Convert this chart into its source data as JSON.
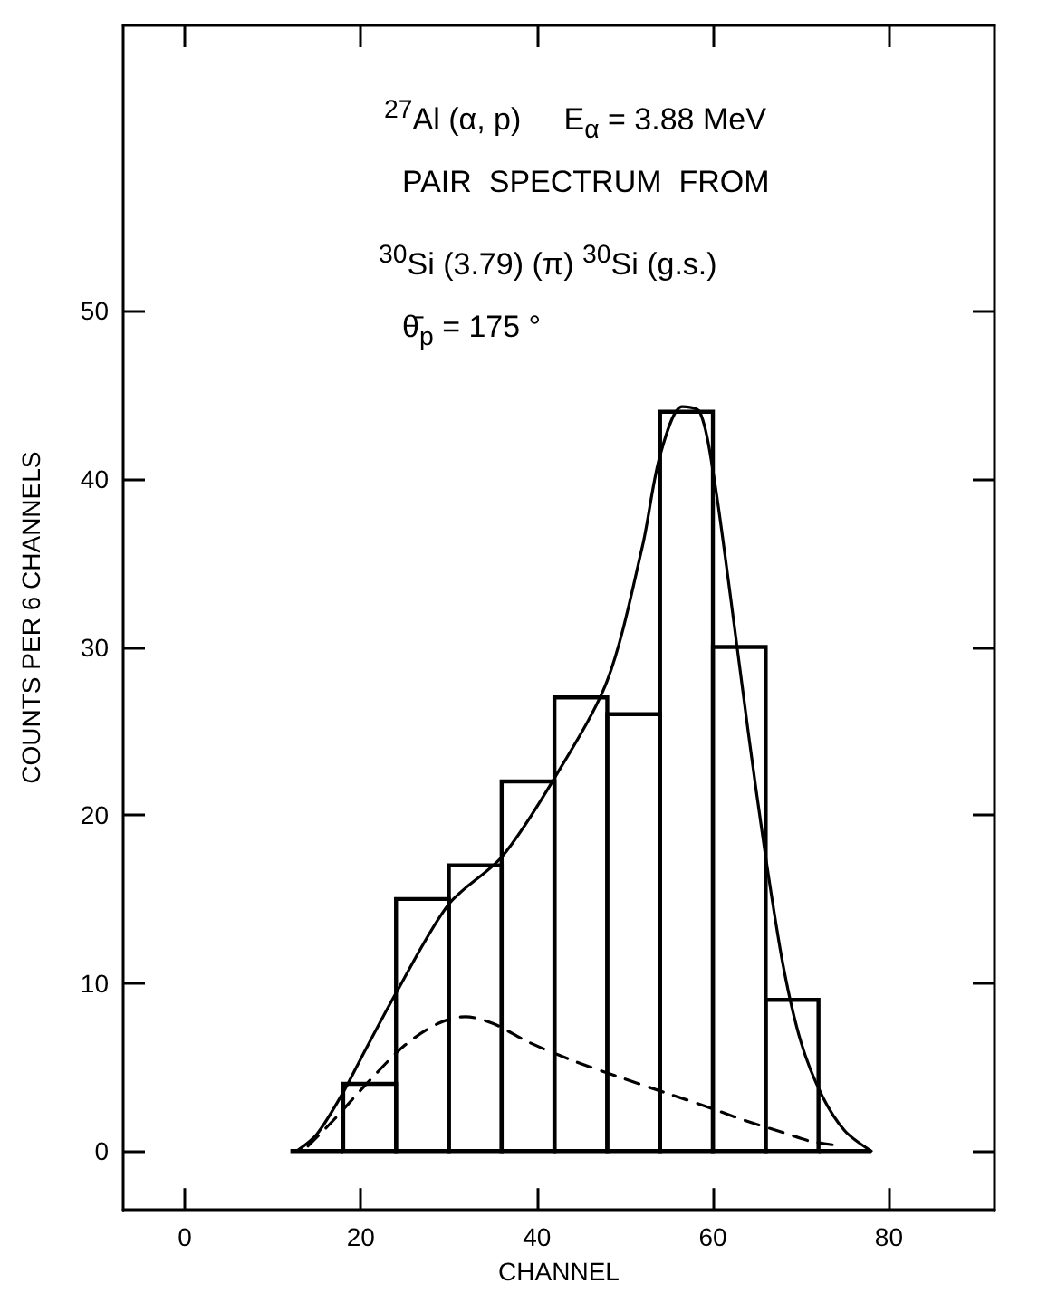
{
  "chart_data": {
    "type": "histogram",
    "xlabel": "CHANNEL",
    "ylabel": "COUNTS PER 6 CHANNELS",
    "annotations": [
      "$^{27}$Al (α, p)     E$_{α}$ = 3.88 MeV",
      "PAIR  SPECTRUM  FROM",
      "$^{30}$Si (3.79) (π) $^{30}$Si (g.s.)",
      "θ̄$_{p}$ = 175 °"
    ],
    "series": [
      {
        "color": "#000000",
        "bins": [
          12,
          18,
          24,
          30,
          36,
          42,
          48,
          54,
          60,
          66,
          72,
          78
        ],
        "values": [
          0,
          4,
          15,
          17,
          22,
          27,
          26,
          44,
          30,
          9,
          0
        ]
      },
      {
        "type": "line",
        "color": "#000000",
        "line_style": "solid",
        "x": [
          12.7,
          15,
          18,
          20,
          24,
          30,
          36,
          42,
          48,
          52,
          54,
          56.5,
          58.5,
          60,
          62,
          64,
          66,
          68,
          70,
          72.4,
          75,
          78
        ],
        "values": [
          0,
          1,
          3.5,
          5.5,
          9.4,
          14.7,
          17.5,
          22.2,
          28,
          36,
          41.4,
          44.3,
          44,
          40.5,
          33,
          25,
          17.5,
          11,
          6.5,
          3.3,
          1.2,
          0
        ]
      },
      {
        "type": "line",
        "color": "#000000",
        "line_style": "dashed",
        "x": [
          14,
          17,
          21,
          25,
          28.8,
          31.9,
          35,
          39,
          44,
          49.4,
          55,
          59,
          63.2,
          68,
          71,
          74.7
        ],
        "values": [
          0.3,
          1.9,
          4.2,
          6.3,
          7.6,
          8,
          7.6,
          6.5,
          5.4,
          4.4,
          3.4,
          2.7,
          1.9,
          1.1,
          0.6,
          0.3
        ]
      }
    ],
    "xlim": [
      -7,
      92
    ],
    "ylim": [
      -3.5,
      67
    ],
    "xticks": [
      0,
      20,
      40,
      60,
      80
    ],
    "yticks": [
      0,
      10,
      20,
      30,
      40,
      50
    ]
  }
}
